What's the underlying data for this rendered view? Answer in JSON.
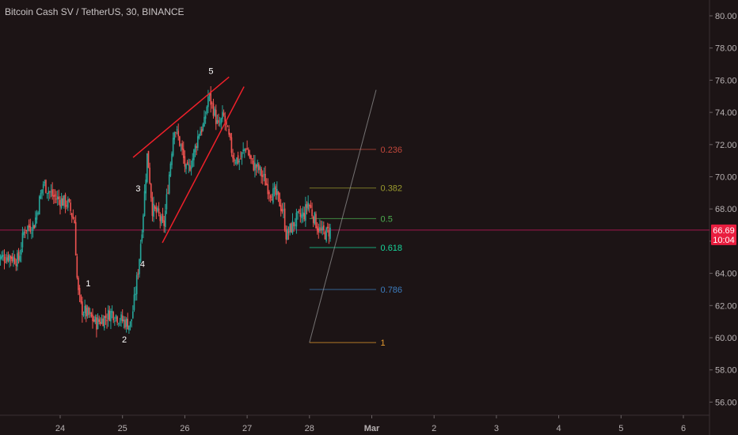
{
  "title": "Bitcoin Cash SV / TetherUS, 30, BINANCE",
  "colors": {
    "background": "#1c1415",
    "up_candle": "#26a69a",
    "down_candle": "#ef5350",
    "price_line": "#c2185b",
    "price_badge": "#e91e3f",
    "wedge": "#f0202a",
    "trendline": "#9a9a9a"
  },
  "chart_data": {
    "type": "candlestick",
    "title": "Bitcoin Cash SV / TetherUS, 30, BINANCE",
    "y_axis": {
      "min": 54.5,
      "max": 80.8,
      "ticks": [
        "56.00",
        "58.00",
        "60.00",
        "62.00",
        "64.00",
        "66.00",
        "68.00",
        "70.00",
        "72.00",
        "74.00",
        "76.00",
        "78.00",
        "80.00"
      ]
    },
    "x_axis": {
      "ticks": [
        "24",
        "25",
        "26",
        "27",
        "28",
        "Mar",
        "2",
        "3",
        "4",
        "5",
        "6"
      ]
    },
    "current_price": {
      "value": "66.69",
      "countdown": "10:04"
    },
    "price_path": [
      [
        23.0,
        64.9
      ],
      [
        23.2,
        65.1
      ],
      [
        23.35,
        64.8
      ],
      [
        23.45,
        66.8
      ],
      [
        23.6,
        67.0
      ],
      [
        23.75,
        69.6
      ],
      [
        23.9,
        68.8
      ],
      [
        24.0,
        68.6
      ],
      [
        24.15,
        68.3
      ],
      [
        24.25,
        67.2
      ],
      [
        24.3,
        63.0
      ],
      [
        24.36,
        61.8
      ],
      [
        24.5,
        61.3
      ],
      [
        24.6,
        60.9
      ],
      [
        24.72,
        61.2
      ],
      [
        24.85,
        61.6
      ],
      [
        25.0,
        61.1
      ],
      [
        25.15,
        60.8
      ],
      [
        25.2,
        62.0
      ],
      [
        25.28,
        64.5
      ],
      [
        25.35,
        67.6
      ],
      [
        25.42,
        71.5
      ],
      [
        25.5,
        68.0
      ],
      [
        25.6,
        67.6
      ],
      [
        25.68,
        66.8
      ],
      [
        25.78,
        70.5
      ],
      [
        25.85,
        73.2
      ],
      [
        25.95,
        72.0
      ],
      [
        26.05,
        70.2
      ],
      [
        26.15,
        71.2
      ],
      [
        26.25,
        72.8
      ],
      [
        26.33,
        73.2
      ],
      [
        26.4,
        75.1
      ],
      [
        26.48,
        74.2
      ],
      [
        26.56,
        73.0
      ],
      [
        26.64,
        73.8
      ],
      [
        26.72,
        72.5
      ],
      [
        26.8,
        71.2
      ],
      [
        26.9,
        71.0
      ],
      [
        27.0,
        71.9
      ],
      [
        27.1,
        70.8
      ],
      [
        27.2,
        70.5
      ],
      [
        27.3,
        69.8
      ],
      [
        27.4,
        69.0
      ],
      [
        27.5,
        68.8
      ],
      [
        27.6,
        67.8
      ],
      [
        27.65,
        66.3
      ],
      [
        27.72,
        66.8
      ],
      [
        27.82,
        67.4
      ],
      [
        27.93,
        67.6
      ],
      [
        28.0,
        68.4
      ],
      [
        28.08,
        67.6
      ],
      [
        28.15,
        66.9
      ],
      [
        28.22,
        66.5
      ],
      [
        28.3,
        66.5
      ],
      [
        28.35,
        66.69
      ]
    ],
    "wave_labels": [
      {
        "label": "1",
        "x": 24.45,
        "y": 63.2
      },
      {
        "label": "2",
        "x": 25.03,
        "y": 59.7
      },
      {
        "label": "3",
        "x": 25.25,
        "y": 69.1
      },
      {
        "label": "4",
        "x": 25.32,
        "y": 64.4
      },
      {
        "label": "5",
        "x": 26.42,
        "y": 76.4
      }
    ],
    "wedge_lines": [
      {
        "x1": 25.17,
        "y1": 71.2,
        "x2": 26.71,
        "y2": 76.2
      },
      {
        "x1": 25.64,
        "y1": 65.9,
        "x2": 26.95,
        "y2": 75.6
      }
    ],
    "trendline": {
      "x1": 28.0,
      "y1": 59.7,
      "x2": 29.07,
      "y2": 75.4
    },
    "fibonacci": {
      "x_start": 28.0,
      "x_end": 29.07,
      "label_x": 29.14,
      "levels": [
        {
          "ratio": "0.236",
          "price": 71.7,
          "color": "#c2473b"
        },
        {
          "ratio": "0.382",
          "price": 69.3,
          "color": "#9a9a2e"
        },
        {
          "ratio": "0.5",
          "price": 67.4,
          "color": "#4caf50"
        },
        {
          "ratio": "0.618",
          "price": 65.6,
          "color": "#17d49a"
        },
        {
          "ratio": "0.786",
          "price": 63.0,
          "color": "#3d7dbf"
        },
        {
          "ratio": "1",
          "price": 59.7,
          "color": "#e59b2f"
        }
      ]
    }
  }
}
